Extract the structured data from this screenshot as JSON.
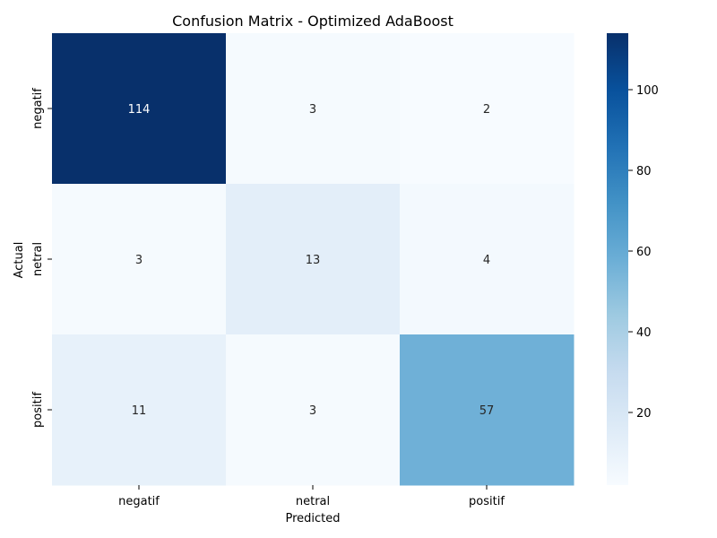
{
  "chart_data": {
    "type": "heatmap",
    "title": "Confusion Matrix - Optimized AdaBoost",
    "xlabel": "Predicted",
    "ylabel": "Actual",
    "x_categories": [
      "negatif",
      "netral",
      "positif"
    ],
    "y_categories": [
      "negatif",
      "netral",
      "positif"
    ],
    "values": [
      [
        114,
        3,
        2
      ],
      [
        3,
        13,
        4
      ],
      [
        11,
        3,
        57
      ]
    ],
    "colormap": "Blues",
    "colorbar": {
      "range": [
        2,
        114
      ],
      "ticks": [
        20,
        40,
        60,
        80,
        100
      ]
    },
    "grid": false
  }
}
